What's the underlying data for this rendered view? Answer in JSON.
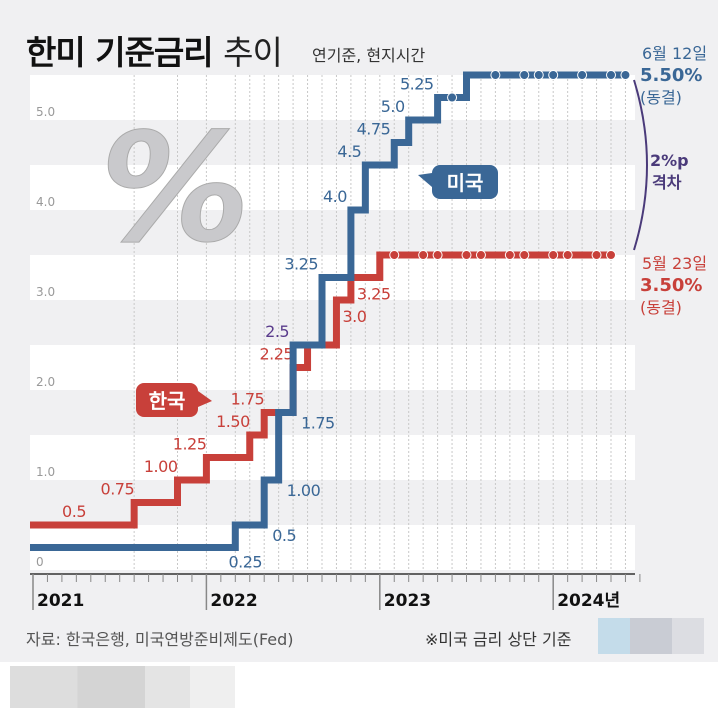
{
  "title_bold": "한미 기준금리",
  "title_light": "추이",
  "subtitle": "연기준, 현지시간",
  "source": "자료: 한국은행, 미국연방준비제도(Fed)",
  "note": "※미국 금리 상단 기준",
  "chart_data": {
    "type": "line",
    "step": true,
    "ylim": [
      0,
      5.5
    ],
    "yticks": [
      "0",
      "1.0",
      "2.0",
      "3.0",
      "4.0",
      "5.0"
    ],
    "xticks": [
      "2021",
      "2022",
      "2023",
      "2024년"
    ],
    "grid": "horizontal bands, dotted vertical lines at meeting dates",
    "series": [
      {
        "name": "한국",
        "color": "#c8403a",
        "steps": [
          {
            "date": "2021-01",
            "value": 0.5,
            "label": "0.5"
          },
          {
            "date": "2021-08",
            "value": 0.75,
            "label": "0.75"
          },
          {
            "date": "2021-11",
            "value": 1.0,
            "label": "1.00"
          },
          {
            "date": "2022-01",
            "value": 1.25,
            "label": "1.25"
          },
          {
            "date": "2022-04",
            "value": 1.5,
            "label": "1.50"
          },
          {
            "date": "2022-05",
            "value": 1.75,
            "label": "1.75"
          },
          {
            "date": "2022-07",
            "value": 2.25,
            "label": "2.25"
          },
          {
            "date": "2022-08",
            "value": 2.5,
            "label": ""
          },
          {
            "date": "2022-10",
            "value": 3.0,
            "label": "3.0"
          },
          {
            "date": "2022-11",
            "value": 3.25,
            "label": "3.25"
          },
          {
            "date": "2023-01",
            "value": 3.5,
            "label": ""
          }
        ],
        "end": "2024-05",
        "hold_meetings": [
          "2023-02",
          "2023-04",
          "2023-05",
          "2023-07",
          "2023-08",
          "2023-10",
          "2023-11",
          "2024-01",
          "2024-02",
          "2024-04",
          "2024-05"
        ],
        "end_annotation": {
          "date": "5월 23일",
          "value": "3.50%",
          "status": "(동결)"
        }
      },
      {
        "name": "미국",
        "color": "#3a6796",
        "steps": [
          {
            "date": "2021-01",
            "value": 0.25,
            "label": "0.25"
          },
          {
            "date": "2022-03",
            "value": 0.5,
            "label": "0.5"
          },
          {
            "date": "2022-05",
            "value": 1.0,
            "label": "1.00"
          },
          {
            "date": "2022-06",
            "value": 1.75,
            "label": "1.75"
          },
          {
            "date": "2022-07",
            "value": 2.5,
            "label": "2.5"
          },
          {
            "date": "2022-09",
            "value": 3.25,
            "label": "3.25"
          },
          {
            "date": "2022-11",
            "value": 4.0,
            "label": "4.0"
          },
          {
            "date": "2022-12",
            "value": 4.5,
            "label": "4.5"
          },
          {
            "date": "2023-02",
            "value": 4.75,
            "label": "4.75"
          },
          {
            "date": "2023-03",
            "value": 5.0,
            "label": "5.0"
          },
          {
            "date": "2023-05",
            "value": 5.25,
            "label": "5.25"
          },
          {
            "date": "2023-07",
            "value": 5.5,
            "label": ""
          }
        ],
        "end": "2024-06",
        "hold_meetings": [
          "2023-06",
          "2023-09",
          "2023-11",
          "2023-12",
          "2024-01",
          "2024-03",
          "2024-05",
          "2024-06"
        ],
        "end_annotation": {
          "date": "6월 12일",
          "value": "5.50%",
          "status": "(동결)"
        }
      }
    ],
    "gap_annotation": [
      "2%p",
      "격차"
    ]
  }
}
